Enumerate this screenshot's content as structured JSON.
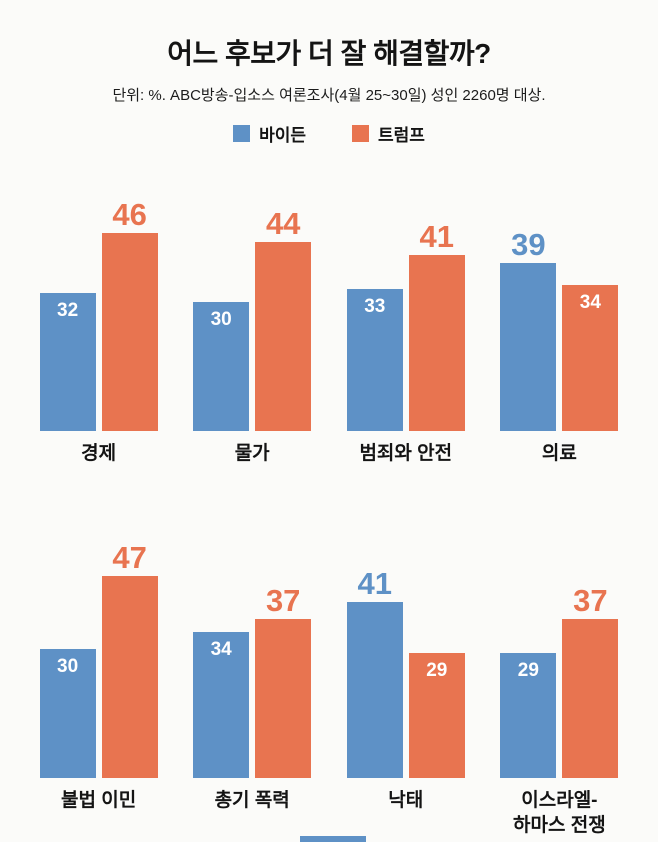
{
  "title": "어느 후보가 더 잘 해결할까?",
  "subtitle": "단위: %. ABC방송-입소스 여론조사(4월 25~30일) 성인 2260명 대상.",
  "legend": [
    {
      "label": "바이든",
      "color": "#5e91c6"
    },
    {
      "label": "트럼프",
      "color": "#e87450"
    }
  ],
  "colors": {
    "biden": "#5e91c6",
    "trump": "#e87450"
  },
  "chart_data": {
    "type": "bar",
    "unit": "%",
    "title": "어느 후보가 더 잘 해결할까?",
    "subtitle": "단위: %. ABC방송-입소스 여론조사(4월 25~30일) 성인 2260명 대상.",
    "legend_position": "top",
    "grid": false,
    "ylim": [
      0,
      50
    ],
    "xlabel": "",
    "ylabel": "",
    "series_names": [
      "바이든",
      "트럼프"
    ],
    "groups": [
      {
        "category": "경제",
        "values": [
          32,
          46
        ]
      },
      {
        "category": "물가",
        "values": [
          30,
          44
        ]
      },
      {
        "category": "범죄와 안전",
        "values": [
          33,
          41
        ]
      },
      {
        "category": "의료",
        "values": [
          39,
          34
        ]
      },
      {
        "category": "불법 이민",
        "values": [
          30,
          47
        ]
      },
      {
        "category": "총기 폭력",
        "values": [
          34,
          37
        ]
      },
      {
        "category": "낙태",
        "values": [
          41,
          29
        ]
      },
      {
        "category": "이스라엘-\n하마스 전쟁",
        "values": [
          29,
          37
        ]
      }
    ]
  }
}
